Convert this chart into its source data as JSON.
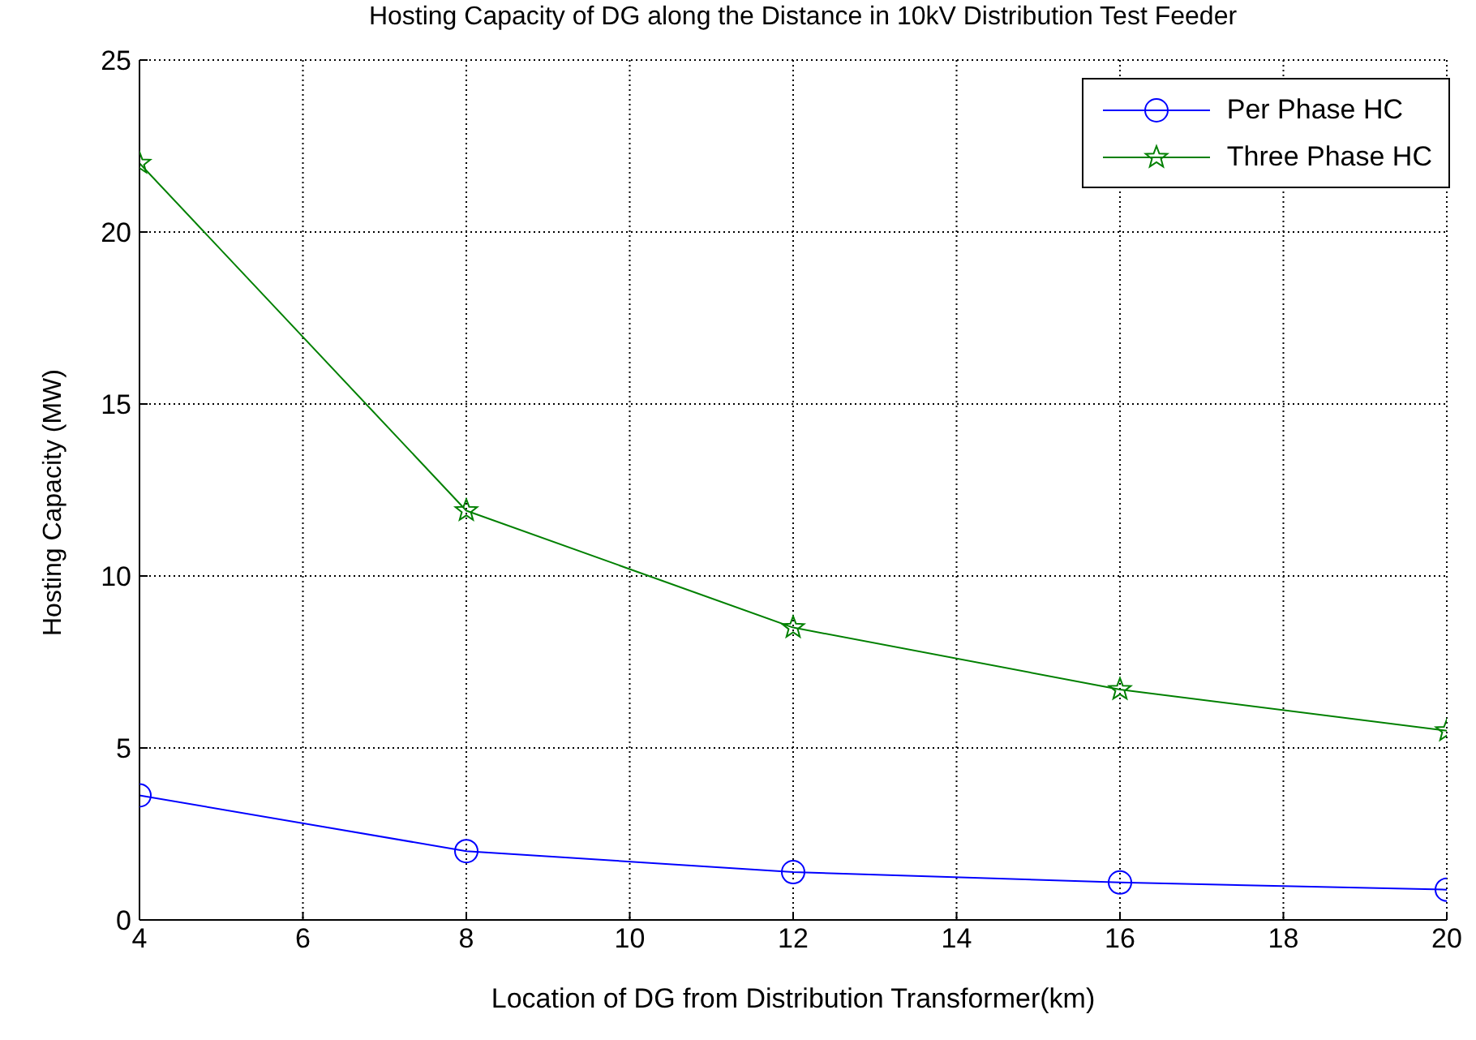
{
  "chart_data": {
    "type": "line",
    "title": "Hosting Capacity of DG along the Distance in 10kV Distribution Test Feeder",
    "xlabel": "Location of DG from Distribution Transformer(km)",
    "ylabel": "Hosting Capacity (MW)",
    "x": [
      4,
      8,
      12,
      16,
      20
    ],
    "series": [
      {
        "name": "Per Phase HC",
        "color": "#0000ff",
        "marker": "circle",
        "values": [
          3.62,
          2.0,
          1.39,
          1.09,
          0.88
        ]
      },
      {
        "name": "Three Phase HC",
        "color": "#008000",
        "marker": "star",
        "values": [
          22,
          11.9,
          8.5,
          6.7,
          5.5
        ]
      }
    ],
    "xlim": [
      4,
      20
    ],
    "xticks": [
      4,
      6,
      8,
      10,
      12,
      14,
      16,
      18,
      20
    ],
    "ylim": [
      0,
      25
    ],
    "yticks": [
      0,
      5,
      10,
      15,
      20,
      25
    ],
    "grid": true,
    "legend": "top right",
    "line_style": "solid"
  }
}
